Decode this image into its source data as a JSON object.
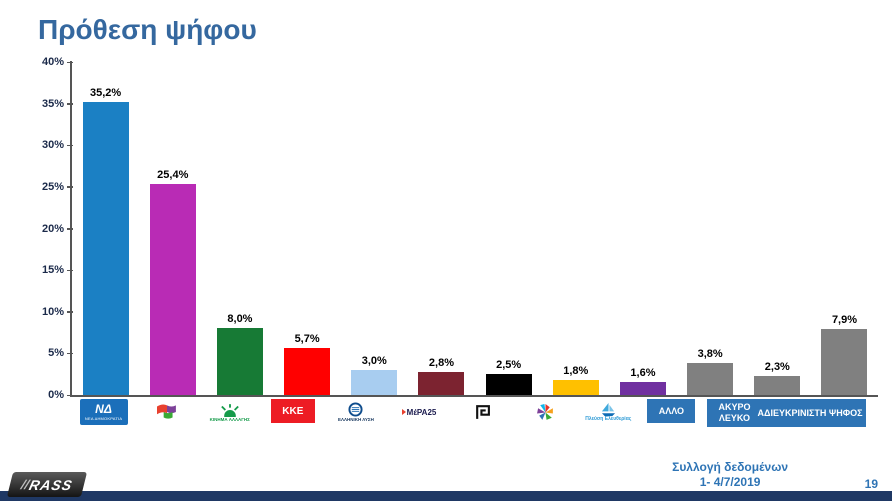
{
  "title": "Πρόθεση ψήφου",
  "chart_data": {
    "type": "bar",
    "title": "Πρόθεση ψήφου",
    "xlabel": "",
    "ylabel": "",
    "ylim": [
      0,
      40
    ],
    "ytick_step": 5,
    "grid": false,
    "legend": "none",
    "yticks_desc": [
      "40%",
      "35%",
      "30%",
      "25%",
      "20%",
      "15%",
      "10%",
      "5%",
      "0%"
    ],
    "categories": [
      "ΝΕΑ ΔΗΜΟΚΡΑΤΙΑ",
      "ΣΥΡΙΖΑ",
      "ΚΙΝΗΜΑ ΑΛΛΑΓΗΣ",
      "ΚΚΕ",
      "ΕΛΛΗΝΙΚΗ ΛΥΣΗ",
      "ΜέΡΑ25",
      "ΧΡΥΣΗ ΑΥΓΗ",
      "ΕΝΩΣΗ ΚΕΝΤΡΩΩΝ",
      "ΠΛΕΥΣΗ ΕΛΕΥΘΕΡΙΑΣ",
      "ΑΛΛΟ",
      "ΑΚΥΡΟ ΛΕΥΚΟ",
      "ΑΔΙΕΥΚΡΙΝΙΣΤΗ ΨΗΦΟΣ"
    ],
    "values": [
      35.2,
      25.4,
      8.0,
      5.7,
      3.0,
      2.8,
      2.5,
      1.8,
      1.6,
      3.8,
      2.3,
      7.9
    ],
    "value_labels": [
      "35,2%",
      "25,4%",
      "8,0%",
      "5,7%",
      "3,0%",
      "2,8%",
      "2,5%",
      "1,8%",
      "1,6%",
      "3,8%",
      "2,3%",
      "7,9%"
    ],
    "bar_colors": [
      "#1b80c4",
      "#b92bb5",
      "#177a35",
      "#ff0000",
      "#a8cdf0",
      "#7c2330",
      "#000000",
      "#ffc000",
      "#7030a0",
      "#808080",
      "#808080",
      "#808080"
    ]
  },
  "logos": {
    "nd_text": "ΝΔ",
    "nd_sub": "ΝΕΑ ΔΗΜΟΚΡΑΤΙΑ",
    "kinal_sub": "ΚΙΝΗΜΑ ΑΛΛΑΓΗΣ",
    "kke_text": "ΚΚΕ",
    "elliniki_lysi_sub": "ΕΛΛΗΝΙΚΗ ΛΥΣΗ",
    "mera25_text": "ΜέΡΑ25",
    "plefsi_sub": "Πλεύση Ελευθερίας",
    "allo_text": "ΑΛΛΟ",
    "akyro_text": "ΑΚΥΡΟ ΛΕΥΚΟ",
    "adieukrinisti_text": "ΑΔΙΕΥΚΡΙΝΙΣΤΗ ΨΗΦΟΣ"
  },
  "footer": {
    "collection_line1": "Συλλογή δεδομένων",
    "collection_line2": "1- 4/7/2019",
    "page_number": "19",
    "logo_text": "RASS"
  },
  "colors": {
    "title_blue": "#35689f",
    "label_box_blue": "#2e74b5",
    "footer_blue": "#2e74b5",
    "bottom_strip_navy": "#1f3864"
  }
}
